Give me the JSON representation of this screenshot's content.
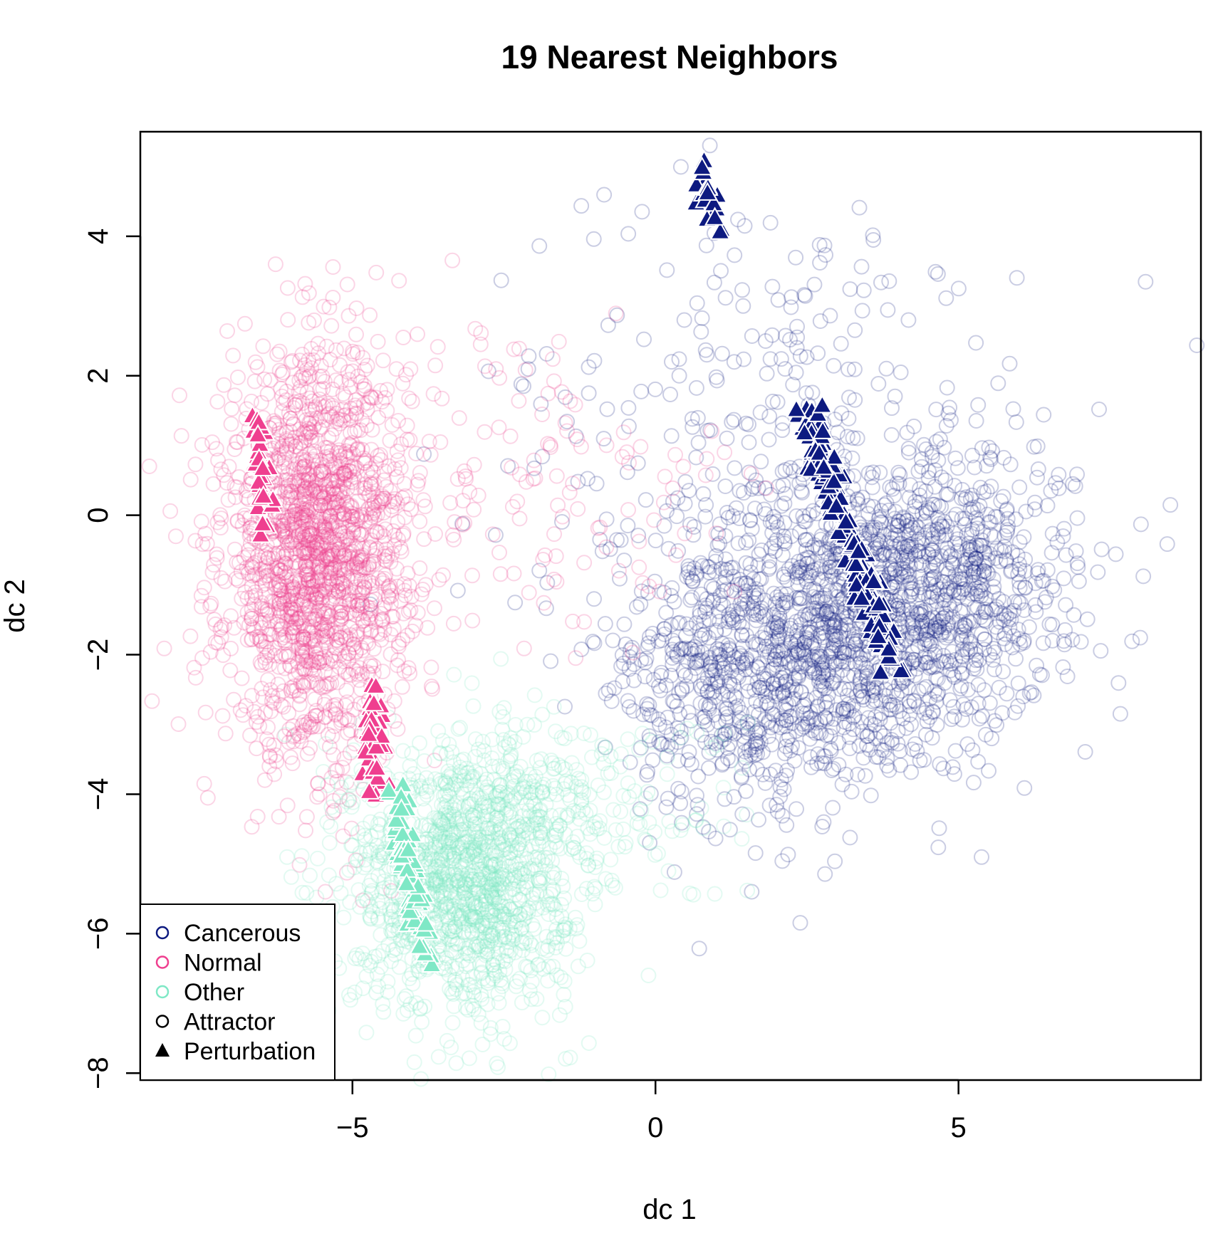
{
  "chart_data": {
    "type": "scatter",
    "title": "19 Nearest Neighbors",
    "xlabel": "dc 1",
    "ylabel": "dc 2",
    "xlim": [
      -8.5,
      9
    ],
    "ylim": [
      -8.1,
      5.5
    ],
    "xticks": [
      -5,
      0,
      5
    ],
    "yticks": [
      -8,
      -6,
      -4,
      -2,
      0,
      2,
      4
    ],
    "grid": false,
    "legend": {
      "position": "bottom-left",
      "entries": [
        {
          "label": "Cancerous",
          "marker": "circle",
          "color": "#0d1a80"
        },
        {
          "label": "Normal",
          "marker": "circle",
          "color": "#ef3f8f"
        },
        {
          "label": "Other",
          "marker": "circle",
          "color": "#7fe8c6"
        },
        {
          "label": "Attractor",
          "marker": "circle",
          "color": "#000000"
        },
        {
          "label": "Perturbation",
          "marker": "triangle",
          "color": "#000000"
        }
      ]
    },
    "series": [
      {
        "name": "Cancerous",
        "role": "attractor",
        "marker": "circle",
        "color": "#0d1a80",
        "clusters": [
          {
            "center": [
              3.2,
              -1.6
            ],
            "spread": [
              1.6,
              1.1
            ],
            "count": 1100
          },
          {
            "center": [
              4.6,
              -0.8
            ],
            "spread": [
              1.2,
              0.9
            ],
            "count": 500
          },
          {
            "center": [
              1.5,
              -2.5
            ],
            "spread": [
              1.0,
              1.0
            ],
            "count": 400
          },
          {
            "center": [
              2.0,
              1.5
            ],
            "spread": [
              2.5,
              1.6
            ],
            "count": 260
          }
        ]
      },
      {
        "name": "Normal",
        "role": "attractor",
        "marker": "circle",
        "color": "#ef3f8f",
        "clusters": [
          {
            "center": [
              -5.6,
              -0.6
            ],
            "spread": [
              0.75,
              1.4
            ],
            "count": 1700
          },
          {
            "center": [
              -2.2,
              0.4
            ],
            "spread": [
              2.0,
              1.2
            ],
            "count": 160
          }
        ]
      },
      {
        "name": "Other",
        "role": "attractor",
        "marker": "circle",
        "color": "#7fe8c6",
        "clusters": [
          {
            "center": [
              -3.2,
              -5.2
            ],
            "spread": [
              0.9,
              0.95
            ],
            "count": 1300
          },
          {
            "center": [
              -1.5,
              -4.2
            ],
            "spread": [
              1.4,
              0.7
            ],
            "count": 220
          }
        ]
      },
      {
        "name": "Cancerous",
        "role": "perturbation",
        "marker": "triangle",
        "color": "#0d1a80",
        "segments": [
          {
            "from": [
              0.65,
              5.05
            ],
            "to": [
              1.1,
              4.0
            ],
            "count": 18
          },
          {
            "from": [
              2.5,
              1.45
            ],
            "to": [
              3.9,
              -2.1
            ],
            "count": 170
          }
        ]
      },
      {
        "name": "Normal",
        "role": "perturbation",
        "marker": "triangle",
        "color": "#ef3f8f",
        "segments": [
          {
            "from": [
              -6.5,
              1.45
            ],
            "to": [
              -6.45,
              -0.3
            ],
            "count": 30
          },
          {
            "from": [
              -4.6,
              -2.45
            ],
            "to": [
              -4.65,
              -4.0
            ],
            "count": 45
          }
        ]
      },
      {
        "name": "Other",
        "role": "perturbation",
        "marker": "triangle",
        "color": "#7fe8c6",
        "segments": [
          {
            "from": [
              -4.3,
              -4.0
            ],
            "to": [
              -3.8,
              -6.3
            ],
            "count": 70
          }
        ]
      }
    ]
  }
}
